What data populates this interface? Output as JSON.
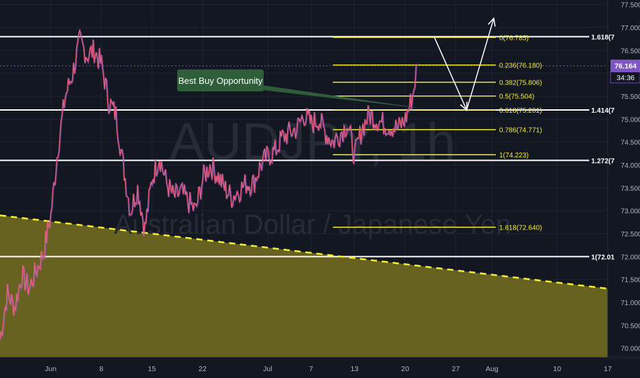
{
  "colors": {
    "background": "#131722",
    "grid": "#1e2330",
    "axis_text": "#b2b5be",
    "price_line": "#e8607d",
    "price_line_alt": "#a35bd4",
    "fib_line": "#f5ee35",
    "level_line": "#ffffff",
    "zone_fill": "#77701f",
    "trend_dash": "#f5ee35",
    "callout_bg": "#2f5d3a",
    "current_price_bg": "#7e57c2",
    "countdown_bg": "#131722",
    "watermark": "#3a3f4f"
  },
  "watermark": {
    "symbol": "AUDJPY, 1h",
    "description": "Australian Dollar / Japanese Yen"
  },
  "callout": {
    "text": "Best Buy Opportunity"
  },
  "price_badge": {
    "price": "76.164",
    "countdown": "34:36"
  },
  "chart_data": {
    "type": "line",
    "title": "",
    "xlabel": "",
    "ylabel": "",
    "ylim": [
      69.8,
      77.6
    ],
    "xlim": [
      "2020-05-25T00:00",
      "2020-08-17T00:00"
    ],
    "x_ticks": [
      {
        "date": "2020-06-01",
        "label": "Jun"
      },
      {
        "date": "2020-06-08",
        "label": "8"
      },
      {
        "date": "2020-06-15",
        "label": "15"
      },
      {
        "date": "2020-06-22",
        "label": "22"
      },
      {
        "date": "2020-07-01",
        "label": "Jul"
      },
      {
        "date": "2020-07-07",
        "label": "7"
      },
      {
        "date": "2020-07-13",
        "label": "13"
      },
      {
        "date": "2020-07-20",
        "label": "20"
      },
      {
        "date": "2020-07-27",
        "label": "27"
      },
      {
        "date": "2020-08-01",
        "label": "Aug"
      },
      {
        "date": "2020-08-10",
        "label": "10"
      },
      {
        "date": "2020-08-17",
        "label": "17"
      }
    ],
    "y_ticks": [
      "77.500",
      "77.000",
      "76.500",
      "76.000",
      "75.500",
      "75.000",
      "74.500",
      "74.000",
      "73.500",
      "73.000",
      "72.500",
      "72.000",
      "71.500",
      "71.000",
      "70.500",
      "70.000"
    ],
    "series": [
      {
        "x": [
          "2020-05-25",
          "2020-05-26",
          "2020-05-27",
          "2020-05-28",
          "2020-05-29",
          "2020-05-31",
          "2020-06-01",
          "2020-06-02",
          "2020-06-03",
          "2020-06-04",
          "2020-06-05",
          "2020-06-06",
          "2020-06-07",
          "2020-06-08",
          "2020-06-09",
          "2020-06-10",
          "2020-06-11",
          "2020-06-12",
          "2020-06-13",
          "2020-06-14",
          "2020-06-15",
          "2020-06-16",
          "2020-06-17",
          "2020-06-18",
          "2020-06-19",
          "2020-06-21",
          "2020-06-22",
          "2020-06-23",
          "2020-06-24",
          "2020-06-25",
          "2020-06-26",
          "2020-06-28",
          "2020-06-29",
          "2020-06-30",
          "2020-07-01",
          "2020-07-02",
          "2020-07-03",
          "2020-07-05",
          "2020-07-06",
          "2020-07-07",
          "2020-07-08",
          "2020-07-09",
          "2020-07-10",
          "2020-07-12",
          "2020-07-13",
          "2020-07-14",
          "2020-07-15",
          "2020-07-16",
          "2020-07-17",
          "2020-07-19",
          "2020-07-20",
          "2020-07-21",
          "2020-07-21T16:00"
        ],
        "values": [
          70.2,
          71.2,
          70.9,
          71.6,
          71.3,
          72.1,
          72.9,
          74.4,
          75.5,
          76.0,
          76.7,
          76.4,
          76.5,
          76.2,
          75.4,
          75.1,
          74.0,
          73.0,
          73.5,
          72.6,
          73.7,
          74.2,
          73.6,
          73.3,
          73.4,
          73.0,
          73.7,
          74.0,
          73.8,
          73.5,
          73.3,
          73.6,
          73.6,
          74.0,
          74.2,
          74.3,
          74.6,
          74.8,
          75.1,
          74.9,
          75.0,
          74.7,
          74.5,
          74.9,
          74.2,
          74.8,
          75.1,
          75.0,
          74.9,
          74.8,
          75.0,
          75.5,
          76.2
        ]
      }
    ],
    "horizontal_levels": [
      {
        "price": 76.8,
        "label": "1.618(7"
      },
      {
        "price": 75.2,
        "label": "1.414(7"
      },
      {
        "price": 74.1,
        "label": "1.272(7"
      },
      {
        "price": 72.0,
        "label": "1(72.01"
      }
    ],
    "fib_levels": [
      {
        "price": 76.785,
        "label": "0(76.785)"
      },
      {
        "price": 76.18,
        "label": "0.236(76.180)"
      },
      {
        "price": 75.806,
        "label": "0.382(75.806)"
      },
      {
        "price": 75.504,
        "label": "0.5(75.504)"
      },
      {
        "price": 75.201,
        "label": "0.618(75.201)"
      },
      {
        "price": 74.771,
        "label": "0.786(74.771)"
      },
      {
        "price": 74.223,
        "label": "1(74.223)"
      },
      {
        "price": 72.64,
        "label": "1.618(72.640)"
      }
    ],
    "fib_start": "2020-07-10",
    "trendline": {
      "x": [
        "2020-05-25",
        "2020-08-17"
      ],
      "y": [
        72.9,
        71.3
      ]
    },
    "current_price": 76.164,
    "callout_target": {
      "x": "2020-07-23",
      "y": 75.22
    },
    "projection_arrow": {
      "x": [
        "2020-07-24",
        "2020-07-28T12:00",
        "2020-08-01T06:00"
      ],
      "y": [
        76.8,
        75.2,
        77.2
      ]
    },
    "grid": true,
    "legend": "none"
  }
}
